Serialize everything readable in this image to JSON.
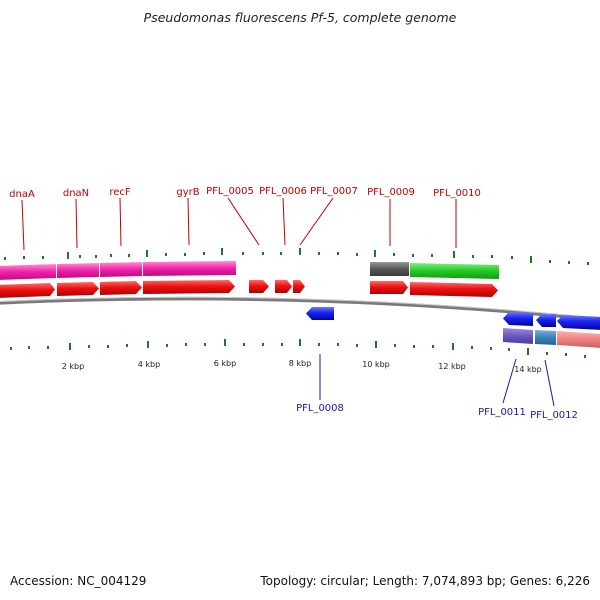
{
  "title": "Pseudomonas fluorescens Pf-5, complete genome",
  "footer": {
    "accession": "Accession: NC_004129",
    "stats": "Topology: circular; Length: 7,074,893 bp; Genes: 6,226"
  },
  "colors": {
    "forward_cds": "#e81010",
    "reverse_cds": "#1414e0",
    "forward_label": "#c00000",
    "reverse_label": "#1a1aa0",
    "tick": "#1e7a1e",
    "backbone": "#7a7a7a"
  },
  "scale_labels": [
    "2 kbp",
    "4 kbp",
    "6 kbp",
    "8 kbp",
    "10 kbp",
    "12 kbp",
    "14 kbp"
  ],
  "forward_gene_labels": [
    "dnaA",
    "dnaN",
    "recF",
    "gyrB",
    "PFL_0005",
    "PFL_0006",
    "PFL_0007",
    "PFL_0009",
    "PFL_0010"
  ],
  "reverse_gene_labels": [
    "PFL_0008",
    "PFL_0011",
    "PFL_0012"
  ]
}
